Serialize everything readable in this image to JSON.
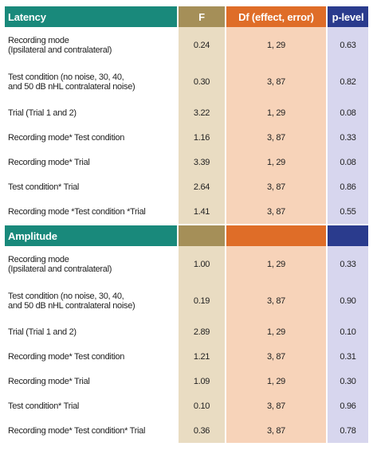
{
  "table": {
    "columns": [
      "F",
      "Df (effect, error)",
      "p-level"
    ],
    "sections": [
      {
        "title": "Latency",
        "rows": [
          [
            "Recording mode\n(Ipsilateral and contralateral)",
            "0.24",
            "1, 29",
            "0.63"
          ],
          [
            "Test condition (no noise, 30, 40,\nand 50 dB nHL contralateral noise)",
            "0.30",
            "3, 87",
            "0.82"
          ],
          [
            "Trial (Trial 1 and 2)",
            "3.22",
            "1, 29",
            "0.08"
          ],
          [
            "Recording mode* Test condition",
            "1.16",
            "3, 87",
            "0.33"
          ],
          [
            "Recording mode* Trial",
            "3.39",
            "1, 29",
            "0.08"
          ],
          [
            "Test condition* Trial",
            "2.64",
            "3, 87",
            "0.86"
          ],
          [
            "Recording mode *Test condition *Trial",
            "1.41",
            "3, 87",
            "0.55"
          ]
        ]
      },
      {
        "title": "Amplitude",
        "rows": [
          [
            "Recording mode\n(Ipsilateral and contralateral)",
            "1.00",
            "1, 29",
            "0.33"
          ],
          [
            "Test condition (no noise, 30, 40,\nand 50 dB nHL contralateral noise)",
            "0.19",
            "3, 87",
            "0.90"
          ],
          [
            "Trial (Trial 1 and 2)",
            "2.89",
            "1, 29",
            "0.10"
          ],
          [
            "Recording mode* Test condition",
            "1.21",
            "3, 87",
            "0.31"
          ],
          [
            "Recording mode* Trial",
            "1.09",
            "1, 29",
            "0.30"
          ],
          [
            "Test condition* Trial",
            "0.10",
            "3, 87",
            "0.96"
          ],
          [
            "Recording mode* Test condition* Trial",
            "0.36",
            "3, 87",
            "0.78"
          ]
        ]
      }
    ]
  }
}
